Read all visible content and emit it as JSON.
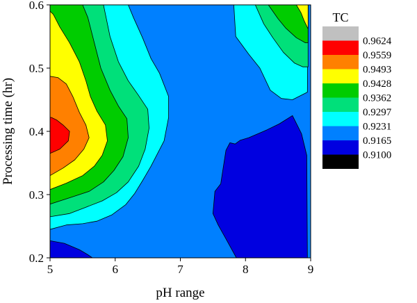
{
  "chart_data": {
    "type": "contour",
    "title": "",
    "xlabel": "pH range",
    "ylabel": "Processing time (hr)",
    "xlim": [
      5,
      9
    ],
    "ylim": [
      0.2,
      0.6
    ],
    "x_ticks": [
      "5",
      "6",
      "7",
      "8",
      "9"
    ],
    "y_ticks": [
      "0.2",
      "0.3",
      "0.4",
      "0.5",
      "0.6"
    ],
    "legend": {
      "title": "TC",
      "placement": "right",
      "levels": [
        "0.9624",
        "0.9559",
        "0.9493",
        "0.9428",
        "0.9362",
        "0.9297",
        "0.9231",
        "0.9165",
        "0.9100"
      ],
      "colors": [
        "#c0c0c0",
        "#ff0000",
        "#ff8000",
        "#ffff00",
        "#00cc00",
        "#00e07a",
        "#00ffff",
        "#0080ff",
        "#0000e0",
        "#000000"
      ]
    },
    "bands": [
      {
        "name": "0.9100-0.9165",
        "color": "#0000e0",
        "polygons": [
          [
            [
              7.5,
              0.27
            ],
            [
              7.53,
              0.305
            ],
            [
              7.62,
              0.317
            ],
            [
              7.65,
              0.337
            ],
            [
              7.7,
              0.37
            ],
            [
              7.76,
              0.382
            ],
            [
              7.84,
              0.38
            ],
            [
              7.92,
              0.386
            ],
            [
              8.05,
              0.39
            ],
            [
              8.32,
              0.402
            ],
            [
              8.52,
              0.412
            ],
            [
              8.72,
              0.425
            ],
            [
              8.86,
              0.396
            ],
            [
              8.94,
              0.362
            ],
            [
              8.95,
              0.2
            ],
            [
              7.86,
              0.2
            ],
            [
              7.7,
              0.23
            ],
            [
              7.58,
              0.252
            ]
          ],
          [
            [
              5,
              0.227
            ],
            [
              5.22,
              0.223
            ],
            [
              5.45,
              0.213
            ],
            [
              5.58,
              0.205
            ],
            [
              5.65,
              0.2
            ],
            [
              5,
              0.2
            ]
          ]
        ]
      },
      {
        "name": "0.9231-0.9297",
        "color": "#00ffff",
        "polygons": [
          [
            [
              5,
              0.6
            ],
            [
              5,
              0.245
            ],
            [
              5.25,
              0.252
            ],
            [
              5.5,
              0.254
            ],
            [
              5.72,
              0.258
            ],
            [
              5.95,
              0.268
            ],
            [
              6.16,
              0.284
            ],
            [
              6.3,
              0.302
            ],
            [
              6.42,
              0.322
            ],
            [
              6.55,
              0.345
            ],
            [
              6.75,
              0.385
            ],
            [
              6.82,
              0.422
            ],
            [
              6.82,
              0.455
            ],
            [
              6.68,
              0.492
            ],
            [
              6.55,
              0.515
            ],
            [
              6.42,
              0.548
            ],
            [
              6.28,
              0.58
            ],
            [
              6.2,
              0.6
            ]
          ],
          [
            [
              7.82,
              0.6
            ],
            [
              7.85,
              0.55
            ],
            [
              8.05,
              0.522
            ],
            [
              8.22,
              0.5
            ],
            [
              8.38,
              0.465
            ],
            [
              8.55,
              0.452
            ],
            [
              8.72,
              0.45
            ],
            [
              8.95,
              0.462
            ],
            [
              8.96,
              0.6
            ]
          ]
        ]
      },
      {
        "name": "0.9297-0.9362",
        "color": "#00e07a",
        "polygons": [
          [
            [
              5,
              0.6
            ],
            [
              5,
              0.265
            ],
            [
              5.3,
              0.27
            ],
            [
              5.55,
              0.28
            ],
            [
              5.8,
              0.29
            ],
            [
              6.02,
              0.303
            ],
            [
              6.2,
              0.32
            ],
            [
              6.36,
              0.345
            ],
            [
              6.46,
              0.372
            ],
            [
              6.52,
              0.405
            ],
            [
              6.5,
              0.435
            ],
            [
              6.35,
              0.458
            ],
            [
              6.2,
              0.48
            ],
            [
              6.05,
              0.51
            ],
            [
              5.92,
              0.55
            ],
            [
              5.82,
              0.6
            ]
          ],
          [
            [
              8.15,
              0.6
            ],
            [
              8.28,
              0.57
            ],
            [
              8.42,
              0.548
            ],
            [
              8.58,
              0.525
            ],
            [
              8.75,
              0.508
            ],
            [
              8.88,
              0.502
            ],
            [
              8.96,
              0.502
            ],
            [
              8.96,
              0.6
            ]
          ]
        ]
      },
      {
        "name": "0.9362-0.9428",
        "color": "#00cc00",
        "polygons": [
          [
            [
              5,
              0.6
            ],
            [
              5,
              0.285
            ],
            [
              5.3,
              0.295
            ],
            [
              5.6,
              0.305
            ],
            [
              5.82,
              0.32
            ],
            [
              5.98,
              0.338
            ],
            [
              6.12,
              0.36
            ],
            [
              6.2,
              0.39
            ],
            [
              6.18,
              0.42
            ],
            [
              6.05,
              0.44
            ],
            [
              5.92,
              0.465
            ],
            [
              5.78,
              0.5
            ],
            [
              5.68,
              0.54
            ],
            [
              5.58,
              0.58
            ],
            [
              5.5,
              0.6
            ]
          ],
          [
            [
              8.35,
              0.6
            ],
            [
              8.5,
              0.578
            ],
            [
              8.62,
              0.563
            ],
            [
              8.78,
              0.548
            ],
            [
              8.92,
              0.54
            ],
            [
              8.96,
              0.54
            ],
            [
              8.96,
              0.6
            ]
          ]
        ]
      },
      {
        "name": "0.9428-0.9493",
        "color": "#ffff00",
        "polygons": [
          [
            [
              5,
              0.6
            ],
            [
              5,
              0.308
            ],
            [
              5.25,
              0.318
            ],
            [
              5.5,
              0.33
            ],
            [
              5.68,
              0.345
            ],
            [
              5.8,
              0.362
            ],
            [
              5.88,
              0.385
            ],
            [
              5.85,
              0.41
            ],
            [
              5.72,
              0.432
            ],
            [
              5.62,
              0.455
            ],
            [
              5.55,
              0.48
            ],
            [
              5.45,
              0.51
            ],
            [
              5.3,
              0.54
            ],
            [
              5.15,
              0.565
            ],
            [
              5.05,
              0.585
            ],
            [
              5,
              0.59
            ]
          ],
          [
            [
              8.78,
              0.6
            ],
            [
              8.85,
              0.588
            ],
            [
              8.9,
              0.575
            ],
            [
              8.96,
              0.562
            ],
            [
              8.96,
              0.6
            ]
          ]
        ]
      },
      {
        "name": "0.9493-0.9559",
        "color": "#ff8000",
        "polygons": [
          [
            [
              5,
              0.33
            ],
            [
              5.2,
              0.342
            ],
            [
              5.38,
              0.355
            ],
            [
              5.52,
              0.372
            ],
            [
              5.6,
              0.39
            ],
            [
              5.55,
              0.41
            ],
            [
              5.45,
              0.43
            ],
            [
              5.35,
              0.455
            ],
            [
              5.25,
              0.475
            ],
            [
              5.12,
              0.485
            ],
            [
              5,
              0.487
            ]
          ]
        ]
      },
      {
        "name": "0.9559-0.9624",
        "color": "#ff0000",
        "polygons": [
          [
            [
              5,
              0.365
            ],
            [
              5.15,
              0.372
            ],
            [
              5.28,
              0.385
            ],
            [
              5.3,
              0.4
            ],
            [
              5.2,
              0.41
            ],
            [
              5.1,
              0.418
            ],
            [
              5.02,
              0.422
            ],
            [
              5,
              0.422
            ]
          ]
        ]
      }
    ]
  }
}
